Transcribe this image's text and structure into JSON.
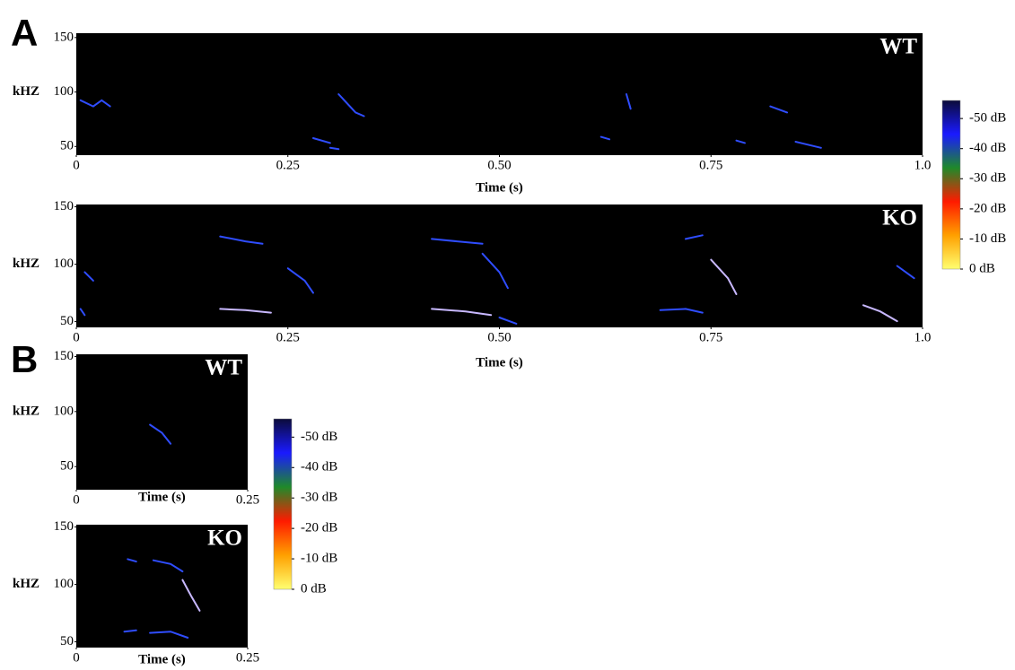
{
  "panels": [
    "A",
    "B"
  ],
  "chart_data": [
    {
      "type": "spectrogram",
      "label": "WT",
      "ylabel": "kHZ",
      "xlabel": "Time (s)",
      "background": "#000000",
      "xlim": [
        0,
        1
      ],
      "xticks": [
        0,
        0.25,
        {
          "value": 0.5,
          "label": "0.50"
        },
        0.75,
        {
          "value": 1,
          "label": "1.0"
        }
      ],
      "ylim": [
        42,
        154
      ],
      "yticks": [
        50,
        100,
        150
      ]
    },
    {
      "type": "spectrogram",
      "label": "KO",
      "ylabel": "kHZ",
      "xlabel": "Time (s)",
      "background": "#000000",
      "xlim": [
        0,
        1
      ],
      "xticks": [
        0,
        0.25,
        {
          "value": 0.5,
          "label": "0.50"
        },
        0.75,
        {
          "value": 1,
          "label": "1.0"
        }
      ],
      "ylim": [
        45,
        152
      ],
      "yticks": [
        50,
        100,
        150
      ]
    },
    {
      "type": "spectrogram",
      "label": "WT",
      "ylabel": "kHZ",
      "xlabel": "Time (s)",
      "background": "#000000",
      "xlim": [
        0,
        0.25
      ],
      "xticks": [
        0,
        0.25
      ],
      "ylim": [
        29,
        152
      ],
      "yticks": [
        50,
        100,
        150
      ]
    },
    {
      "type": "spectrogram",
      "label": "KO",
      "ylabel": "kHZ",
      "xlabel": "Time (s)",
      "background": "#000000",
      "xlim": [
        0,
        0.25
      ],
      "xticks": [
        0,
        0.25
      ],
      "ylim": [
        45,
        152
      ],
      "yticks": [
        50,
        100,
        150
      ]
    },
    {
      "type": "colorbar",
      "ylim": [
        0,
        -56
      ],
      "yticks": [
        {
          "value": -50,
          "label": "-50 dB"
        },
        {
          "value": -40,
          "label": "-40 dB"
        },
        {
          "value": -30,
          "label": "-30 dB"
        },
        {
          "value": -20,
          "label": "-20 dB"
        },
        {
          "value": -10,
          "label": "-10 dB"
        },
        {
          "value": 0,
          "label": "0 dB"
        }
      ],
      "colors": [
        "#0b0b3a",
        "#1a1aff",
        "#1f8a2a",
        "#ff1a00",
        "#ffa000",
        "#ffff70"
      ]
    },
    {
      "type": "colorbar",
      "ylim": [
        0,
        -56
      ],
      "yticks": [
        {
          "value": -50,
          "label": "-50 dB"
        },
        {
          "value": -40,
          "label": "-40 dB"
        },
        {
          "value": -30,
          "label": "-30 dB"
        },
        {
          "value": -20,
          "label": "-20 dB"
        },
        {
          "value": -10,
          "label": "-10 dB"
        },
        {
          "value": 0,
          "label": "0 dB"
        }
      ],
      "colors": [
        "#0b0b3a",
        "#1a1aff",
        "#1f8a2a",
        "#ff1a00",
        "#ffa000",
        "#ffff70"
      ]
    }
  ]
}
